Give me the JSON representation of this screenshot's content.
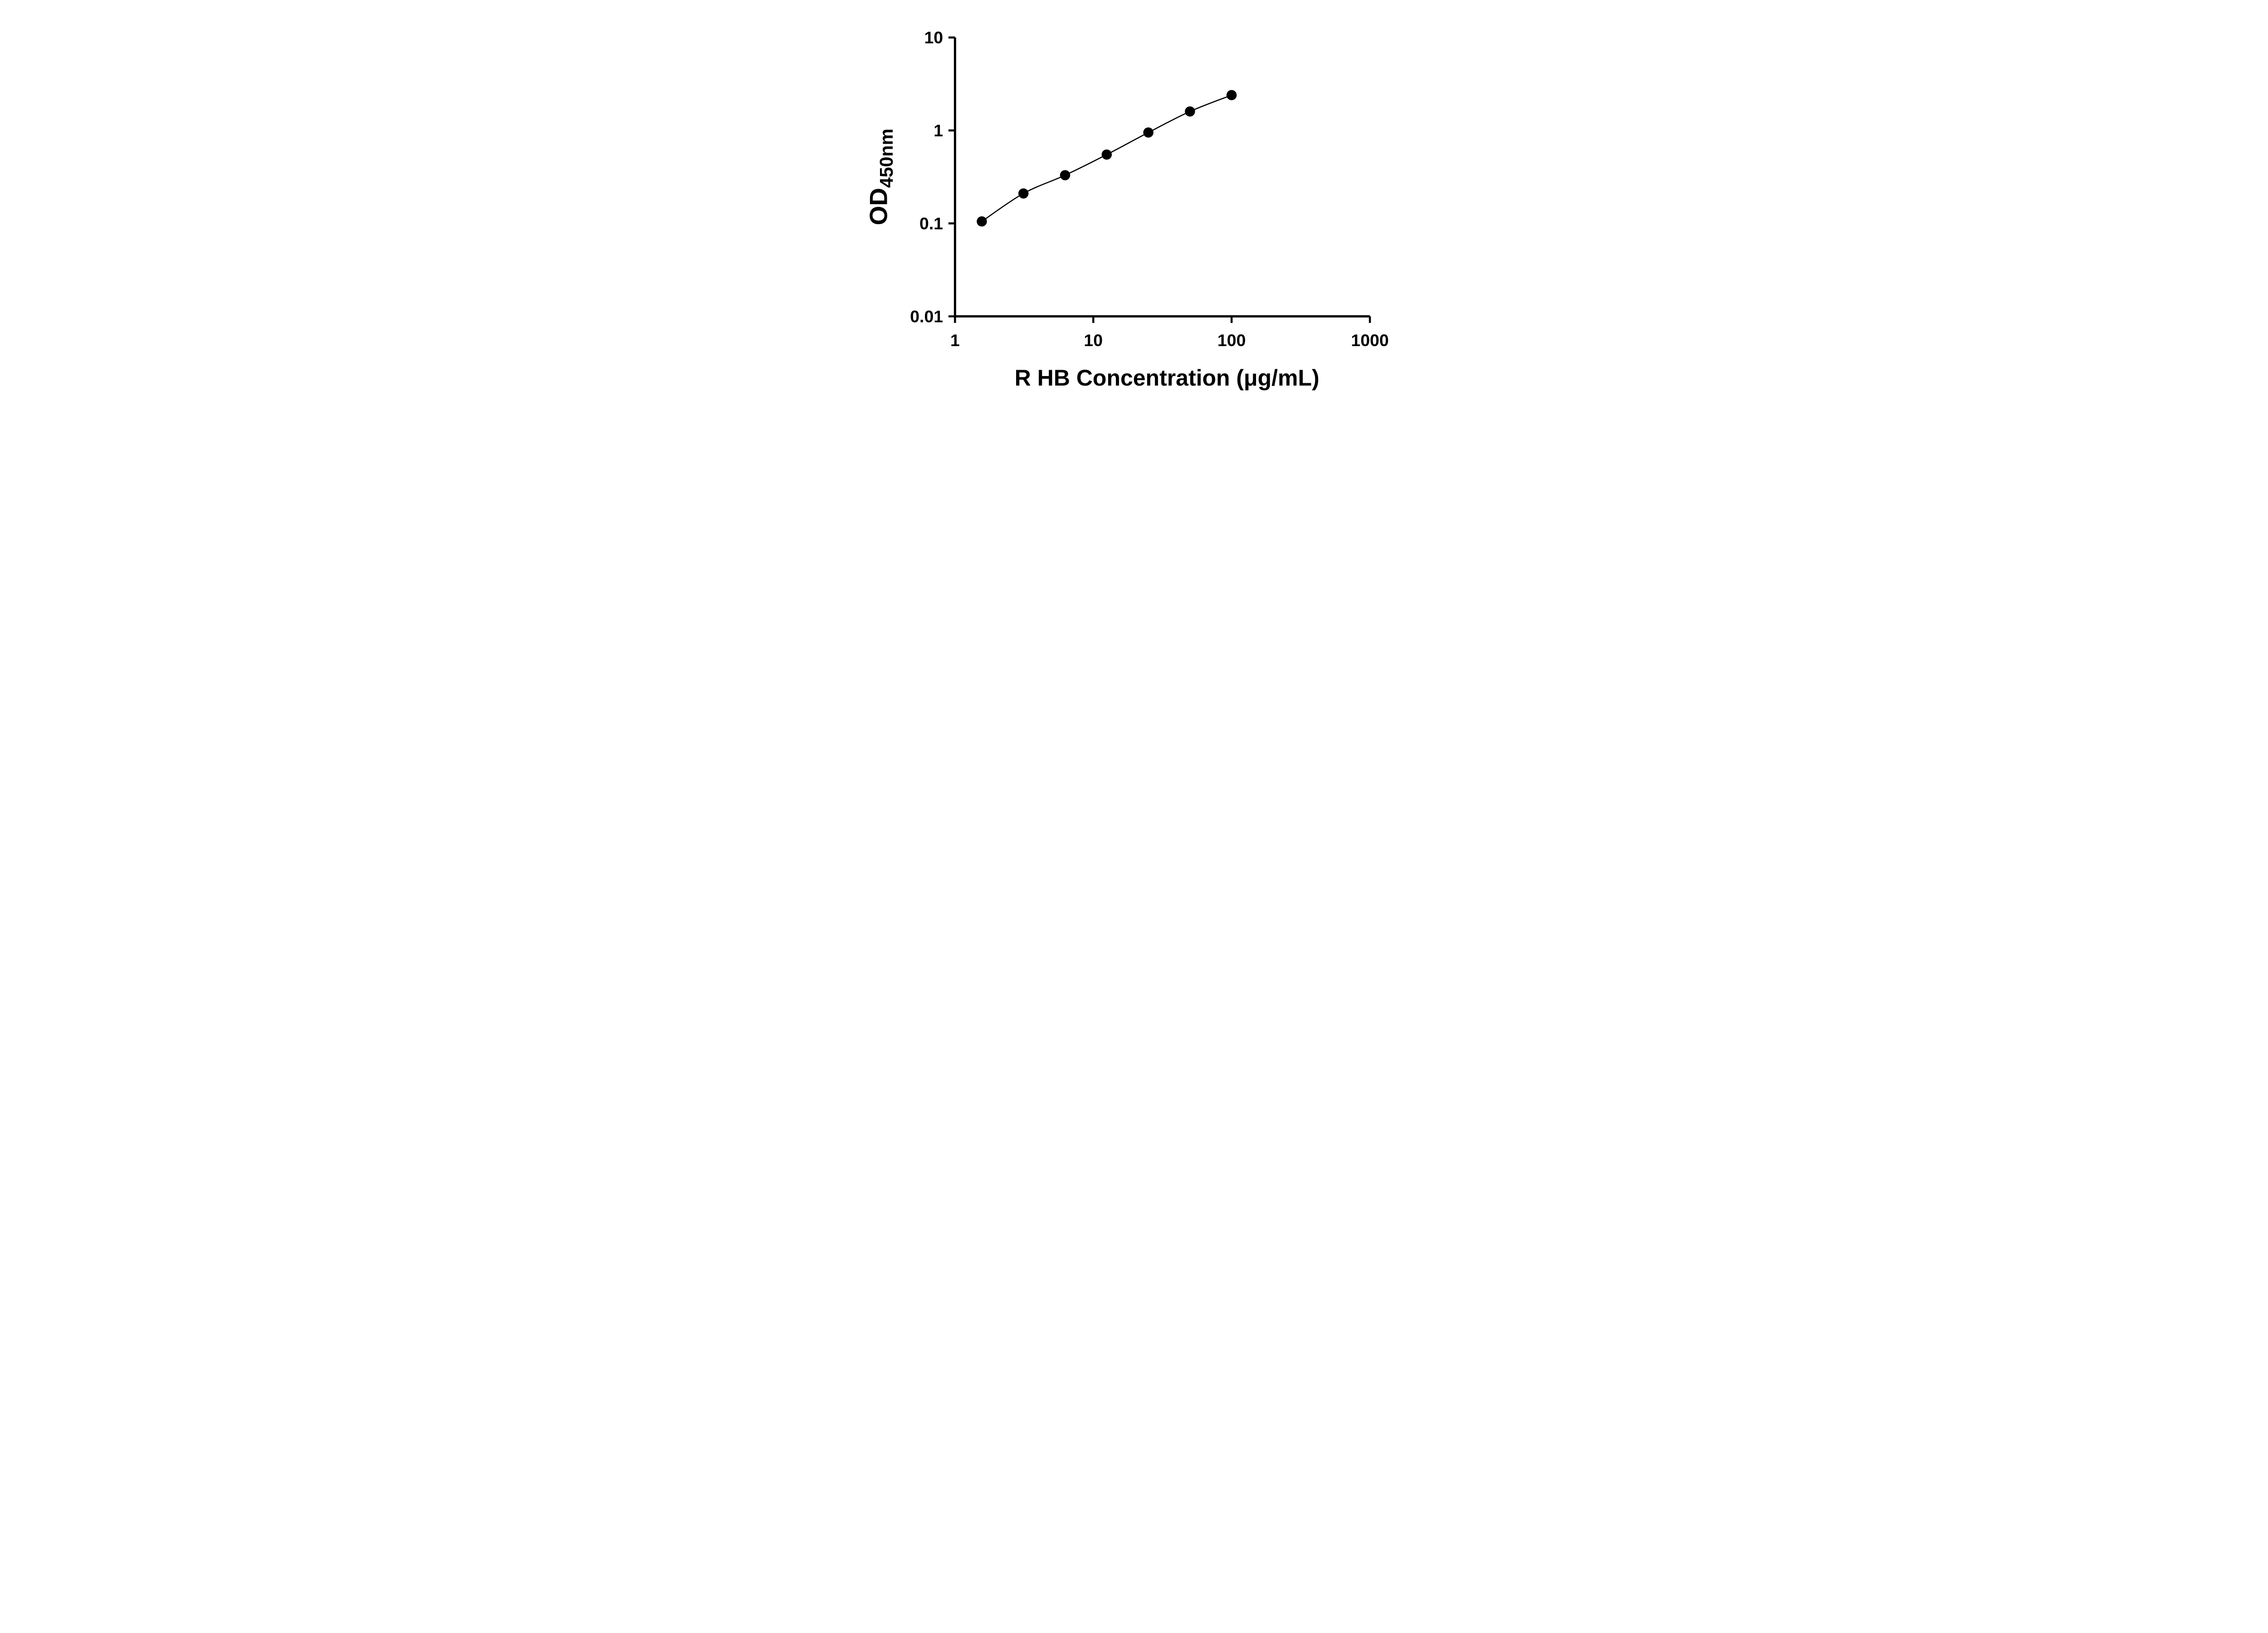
{
  "figure": {
    "background": "#ffffff",
    "axis_color": "#000000",
    "text_color": "#000000"
  },
  "chart_data": {
    "type": "scatter",
    "title": "",
    "xlabel": "R HB Concentration (μg/mL)",
    "ylabel": "OD",
    "ylabel_subscript": "450nm",
    "x_scale": "log",
    "y_scale": "log",
    "xlim": [
      1,
      1000
    ],
    "ylim": [
      0.01,
      10
    ],
    "x_ticks": [
      1,
      10,
      100,
      1000
    ],
    "x_tick_labels": [
      "1",
      "10",
      "100",
      "1000"
    ],
    "y_ticks": [
      0.01,
      0.1,
      1,
      10
    ],
    "y_tick_labels": [
      "0.01",
      "0.1",
      "1",
      "10"
    ],
    "grid": false,
    "legend": false,
    "series": [
      {
        "x": [
          1.5625,
          3.125,
          6.25,
          12.5,
          25,
          50,
          100
        ],
        "y": [
          0.105,
          0.21,
          0.33,
          0.55,
          0.95,
          1.6,
          2.4
        ],
        "marker": "circle",
        "marker_color": "#000000",
        "line": "smooth",
        "line_color": "#000000"
      }
    ]
  }
}
